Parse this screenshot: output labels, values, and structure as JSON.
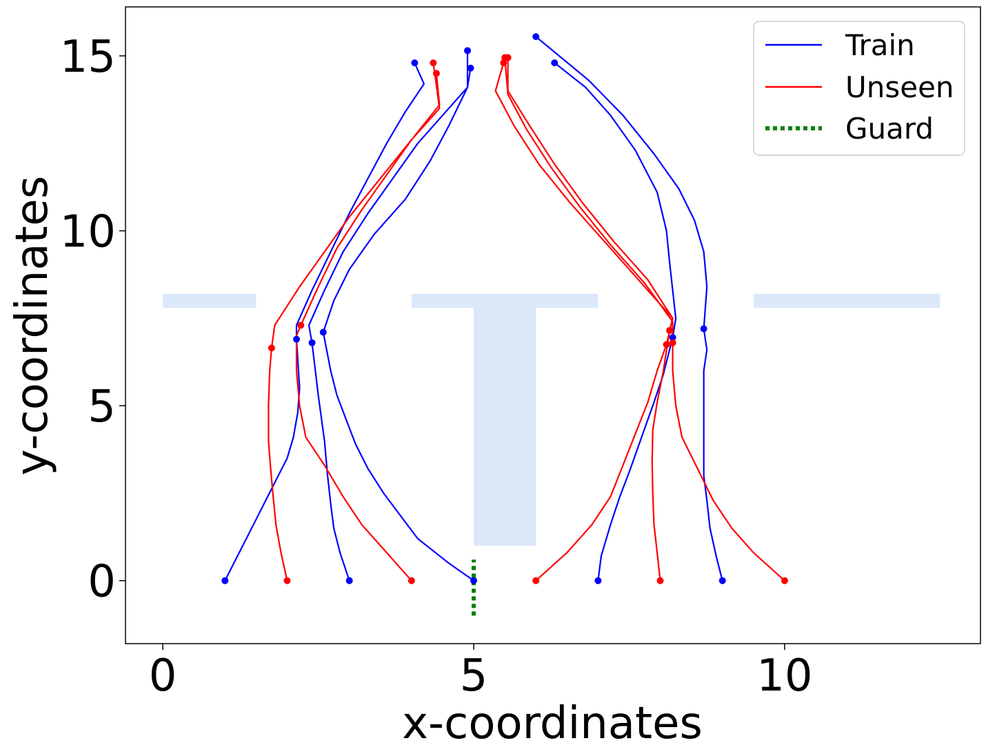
{
  "chart_data": {
    "type": "line",
    "xlabel": "x-coordinates",
    "ylabel": "y-coordinates",
    "xlim": [
      -0.6,
      13.15
    ],
    "ylim": [
      -1.8,
      16.4
    ],
    "x_ticks": [
      0,
      5,
      10
    ],
    "y_ticks": [
      0,
      5,
      10,
      15
    ],
    "x_tick_labels": [
      "0",
      "5",
      "10"
    ],
    "y_tick_labels": [
      "0",
      "5",
      "10",
      "15"
    ],
    "grid": false,
    "legend": {
      "placement": "top-right",
      "entries": [
        {
          "label": "Train",
          "color": "#0000ff",
          "style": "solid"
        },
        {
          "label": "Unseen",
          "color": "#ff0000",
          "style": "solid"
        },
        {
          "label": "Guard",
          "color": "#008000",
          "style": "dotted"
        }
      ]
    },
    "background_shapes": {
      "color": "#dae8fa",
      "rects": [
        {
          "x0": 0.0,
          "x1": 1.5,
          "y0": 7.8,
          "y1": 8.2
        },
        {
          "x0": 4.0,
          "x1": 7.0,
          "y0": 7.8,
          "y1": 8.2
        },
        {
          "x0": 5.0,
          "x1": 6.0,
          "y0": 1.0,
          "y1": 7.8
        },
        {
          "x0": 9.5,
          "x1": 12.5,
          "y0": 7.8,
          "y1": 8.2
        }
      ]
    },
    "guard": {
      "x": [
        5.0,
        5.0
      ],
      "y": [
        -1.0,
        0.6
      ],
      "color": "#008000"
    },
    "series": [
      {
        "group": "Train",
        "color": "#0000ff",
        "points": [
          [
            1.0,
            0.0
          ],
          [
            1.2,
            0.7
          ],
          [
            1.4,
            1.4
          ],
          [
            1.6,
            2.1
          ],
          [
            1.8,
            2.8
          ],
          [
            2.0,
            3.5
          ],
          [
            2.1,
            4.1
          ],
          [
            2.17,
            4.8
          ],
          [
            2.2,
            5.5
          ],
          [
            2.15,
            6.9
          ],
          [
            2.15,
            7.3
          ],
          [
            2.4,
            8.3
          ],
          [
            2.7,
            9.4
          ],
          [
            3.0,
            10.5
          ],
          [
            3.3,
            11.5
          ],
          [
            3.6,
            12.5
          ],
          [
            3.9,
            13.4
          ],
          [
            4.2,
            14.2
          ],
          [
            4.05,
            14.8
          ]
        ],
        "markers": [
          [
            1.0,
            0.0
          ],
          [
            2.15,
            6.9
          ],
          [
            4.05,
            14.8
          ]
        ]
      },
      {
        "group": "Train",
        "color": "#0000ff",
        "points": [
          [
            3.0,
            0.0
          ],
          [
            2.85,
            0.8
          ],
          [
            2.75,
            1.5
          ],
          [
            2.7,
            2.2
          ],
          [
            2.65,
            3.0
          ],
          [
            2.6,
            4.0
          ],
          [
            2.5,
            5.3
          ],
          [
            2.4,
            6.8
          ],
          [
            2.35,
            7.3
          ],
          [
            2.6,
            8.3
          ],
          [
            2.9,
            9.4
          ],
          [
            3.3,
            10.5
          ],
          [
            3.7,
            11.5
          ],
          [
            4.1,
            12.5
          ],
          [
            4.5,
            13.3
          ],
          [
            4.9,
            14.1
          ],
          [
            4.9,
            15.15
          ]
        ],
        "markers": [
          [
            3.0,
            0.0
          ],
          [
            2.4,
            6.8
          ],
          [
            4.9,
            15.15
          ]
        ]
      },
      {
        "group": "Train",
        "color": "#0000ff",
        "points": [
          [
            5.0,
            0.0
          ],
          [
            4.6,
            0.5
          ],
          [
            4.1,
            1.2
          ],
          [
            3.55,
            2.5
          ],
          [
            3.3,
            3.2
          ],
          [
            3.1,
            3.9
          ],
          [
            2.95,
            4.6
          ],
          [
            2.8,
            5.3
          ],
          [
            2.7,
            6.0
          ],
          [
            2.58,
            7.1
          ],
          [
            2.75,
            8.0
          ],
          [
            3.0,
            8.9
          ],
          [
            3.4,
            9.9
          ],
          [
            3.9,
            10.9
          ],
          [
            4.3,
            12.0
          ],
          [
            4.6,
            13.0
          ],
          [
            4.9,
            14.1
          ],
          [
            4.95,
            14.65
          ]
        ],
        "markers": [
          [
            5.0,
            0.0
          ],
          [
            2.58,
            7.1
          ],
          [
            4.95,
            14.65
          ]
        ]
      },
      {
        "group": "Train",
        "color": "#0000ff",
        "points": [
          [
            7.0,
            0.0
          ],
          [
            7.05,
            0.7
          ],
          [
            7.2,
            1.6
          ],
          [
            7.35,
            2.4
          ],
          [
            7.5,
            3.1
          ],
          [
            7.7,
            4.1
          ],
          [
            7.9,
            5.1
          ],
          [
            8.05,
            5.9
          ],
          [
            8.2,
            6.95
          ],
          [
            8.25,
            7.5
          ],
          [
            8.15,
            9.1
          ],
          [
            8.1,
            10.0
          ],
          [
            7.95,
            11.1
          ],
          [
            7.6,
            12.3
          ],
          [
            7.2,
            13.3
          ],
          [
            6.8,
            14.1
          ],
          [
            6.3,
            14.8
          ]
        ],
        "markers": [
          [
            7.0,
            0.0
          ],
          [
            8.2,
            6.95
          ],
          [
            6.3,
            14.8
          ]
        ]
      },
      {
        "group": "Train",
        "color": "#0000ff",
        "points": [
          [
            9.0,
            0.0
          ],
          [
            8.9,
            0.7
          ],
          [
            8.8,
            1.5
          ],
          [
            8.75,
            2.3
          ],
          [
            8.7,
            3.0
          ],
          [
            8.7,
            4.5
          ],
          [
            8.7,
            6.0
          ],
          [
            8.75,
            6.6
          ],
          [
            8.7,
            7.2
          ],
          [
            8.75,
            8.4
          ],
          [
            8.7,
            9.4
          ],
          [
            8.55,
            10.3
          ],
          [
            8.3,
            11.2
          ],
          [
            7.9,
            12.2
          ],
          [
            7.4,
            13.3
          ],
          [
            6.85,
            14.3
          ],
          [
            6.0,
            15.55
          ]
        ],
        "markers": [
          [
            9.0,
            0.0
          ],
          [
            8.7,
            7.2
          ],
          [
            6.0,
            15.55
          ]
        ]
      },
      {
        "group": "Unseen",
        "color": "#ff0000",
        "points": [
          [
            2.0,
            0.0
          ],
          [
            1.9,
            0.8
          ],
          [
            1.82,
            1.6
          ],
          [
            1.77,
            2.5
          ],
          [
            1.73,
            3.3
          ],
          [
            1.7,
            4.0
          ],
          [
            1.7,
            5.0
          ],
          [
            1.72,
            6.0
          ],
          [
            1.75,
            6.65
          ],
          [
            1.8,
            7.3
          ],
          [
            2.2,
            8.4
          ],
          [
            2.6,
            9.4
          ],
          [
            3.0,
            10.4
          ],
          [
            3.5,
            11.5
          ],
          [
            4.0,
            12.6
          ],
          [
            4.45,
            13.5
          ],
          [
            4.35,
            14.8
          ]
        ],
        "markers": [
          [
            2.0,
            0.0
          ],
          [
            1.75,
            6.65
          ],
          [
            4.35,
            14.8
          ]
        ]
      },
      {
        "group": "Unseen",
        "color": "#ff0000",
        "points": [
          [
            4.0,
            0.0
          ],
          [
            3.6,
            0.8
          ],
          [
            3.2,
            1.6
          ],
          [
            2.9,
            2.4
          ],
          [
            2.6,
            3.3
          ],
          [
            2.3,
            4.1
          ],
          [
            2.2,
            5.0
          ],
          [
            2.15,
            6.0
          ],
          [
            2.15,
            7.0
          ],
          [
            2.22,
            7.3
          ],
          [
            2.5,
            8.4
          ],
          [
            2.8,
            9.5
          ],
          [
            3.2,
            10.6
          ],
          [
            3.6,
            11.6
          ],
          [
            4.0,
            12.6
          ],
          [
            4.45,
            13.6
          ],
          [
            4.4,
            14.5
          ]
        ],
        "markers": [
          [
            4.0,
            0.0
          ],
          [
            2.22,
            7.3
          ],
          [
            4.4,
            14.5
          ]
        ]
      },
      {
        "group": "Unseen",
        "color": "#ff0000",
        "points": [
          [
            6.0,
            0.0
          ],
          [
            6.5,
            0.8
          ],
          [
            6.9,
            1.6
          ],
          [
            7.2,
            2.4
          ],
          [
            7.4,
            3.3
          ],
          [
            7.6,
            4.2
          ],
          [
            7.8,
            5.1
          ],
          [
            7.95,
            6.0
          ],
          [
            8.1,
            6.75
          ],
          [
            8.2,
            7.5
          ],
          [
            7.65,
            8.6
          ],
          [
            7.1,
            9.7
          ],
          [
            6.55,
            10.8
          ],
          [
            6.05,
            11.9
          ],
          [
            5.65,
            13.0
          ],
          [
            5.35,
            14.0
          ],
          [
            5.48,
            14.8
          ]
        ],
        "markers": [
          [
            6.0,
            0.0
          ],
          [
            8.1,
            6.75
          ],
          [
            5.48,
            14.8
          ]
        ]
      },
      {
        "group": "Unseen",
        "color": "#ff0000",
        "points": [
          [
            8.0,
            0.0
          ],
          [
            7.95,
            0.8
          ],
          [
            7.9,
            1.6
          ],
          [
            7.88,
            2.5
          ],
          [
            7.87,
            3.4
          ],
          [
            7.88,
            4.3
          ],
          [
            7.95,
            5.1
          ],
          [
            8.05,
            6.0
          ],
          [
            8.15,
            7.15
          ],
          [
            8.2,
            7.5
          ],
          [
            7.8,
            8.6
          ],
          [
            7.25,
            9.7
          ],
          [
            6.75,
            10.8
          ],
          [
            6.3,
            11.9
          ],
          [
            5.9,
            13.0
          ],
          [
            5.55,
            14.0
          ],
          [
            5.55,
            14.95
          ]
        ],
        "markers": [
          [
            8.0,
            0.0
          ],
          [
            8.15,
            7.15
          ],
          [
            5.55,
            14.95
          ]
        ]
      },
      {
        "group": "Unseen",
        "color": "#ff0000",
        "points": [
          [
            10.0,
            0.0
          ],
          [
            9.5,
            0.8
          ],
          [
            9.15,
            1.5
          ],
          [
            8.85,
            2.3
          ],
          [
            8.6,
            3.2
          ],
          [
            8.35,
            4.1
          ],
          [
            8.25,
            5.0
          ],
          [
            8.2,
            6.0
          ],
          [
            8.2,
            6.8
          ],
          [
            8.2,
            7.4
          ],
          [
            7.75,
            8.5
          ],
          [
            7.2,
            9.6
          ],
          [
            6.7,
            10.7
          ],
          [
            6.25,
            11.8
          ],
          [
            5.85,
            12.9
          ],
          [
            5.55,
            13.9
          ],
          [
            5.5,
            14.95
          ]
        ],
        "markers": [
          [
            10.0,
            0.0
          ],
          [
            8.2,
            6.8
          ],
          [
            5.5,
            14.95
          ]
        ]
      }
    ]
  }
}
